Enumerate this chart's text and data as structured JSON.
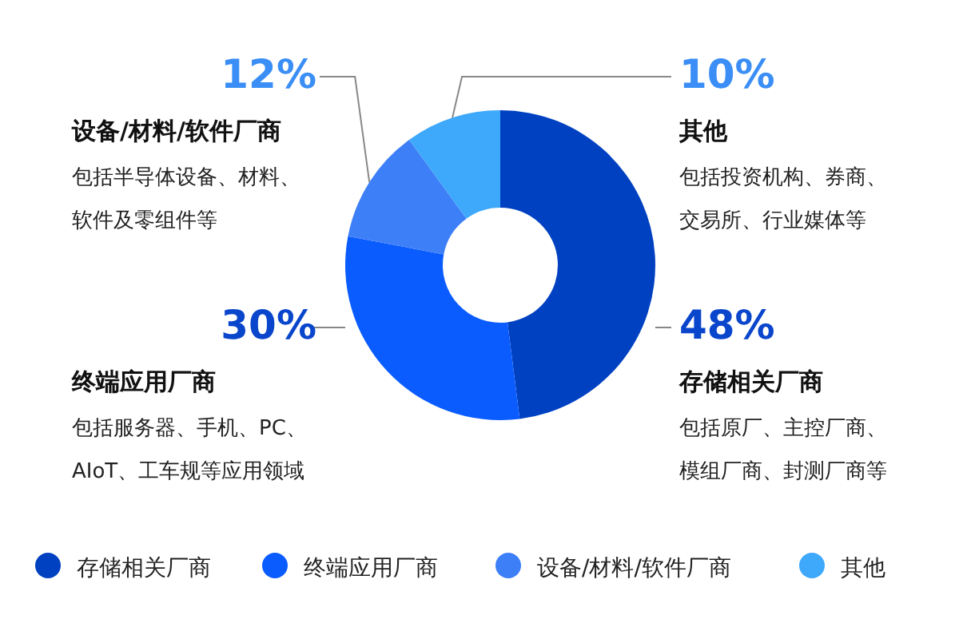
{
  "chart_data": {
    "type": "donut",
    "categories": [
      "存储相关厂商",
      "终端应用厂商",
      "设备/材料/软件厂商",
      "其他"
    ],
    "values": [
      48,
      30,
      12,
      10
    ],
    "colors": [
      "#0041c2",
      "#0a5cff",
      "#3d7ff7",
      "#3ea8fa"
    ],
    "value_labels": [
      "48%",
      "30%",
      "12%",
      "10%"
    ],
    "annotations": [
      "包括原厂、主控厂商、",
      "模组厂商、封测厂商等",
      "包括服务器、手机、PC、",
      "AIoT、工车规等应用领域",
      "包括半导体设备、材料、",
      "软件及零组件等",
      "包括投资机构、券商、",
      "交易所、行业媒体等"
    ],
    "legend": "bottom"
  }
}
